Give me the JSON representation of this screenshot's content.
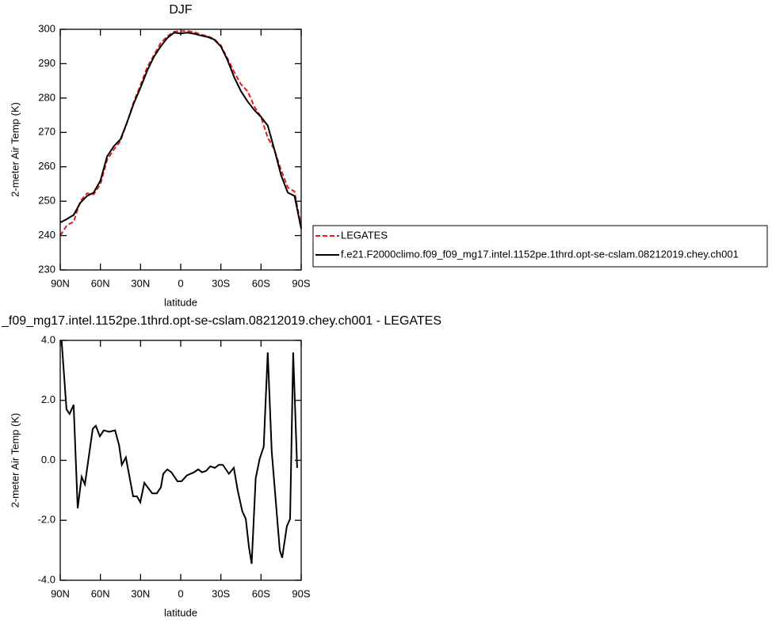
{
  "chart_data": [
    {
      "type": "line",
      "title": "DJF",
      "xlabel": "latitude",
      "ylabel": "2-meter Air Temp (K)",
      "x": [
        90,
        85,
        80,
        75,
        70,
        65,
        60,
        55,
        50,
        45,
        40,
        35,
        30,
        25,
        20,
        15,
        10,
        5,
        0,
        -5,
        -10,
        -15,
        -20,
        -25,
        -30,
        -35,
        -40,
        -45,
        -50,
        -55,
        -60,
        -65,
        -70,
        -75,
        -80,
        -85,
        -90
      ],
      "series": [
        {
          "name": "LEGATES",
          "color": "#e41a1c",
          "linestyle": "dashed",
          "values": [
            240,
            243,
            244,
            250,
            252.3,
            252,
            255,
            262,
            265,
            267.5,
            273,
            279,
            283.8,
            289,
            292.5,
            296,
            298,
            299.3,
            299.5,
            299.5,
            299.2,
            298.5,
            298,
            297.2,
            295.3,
            291.5,
            287.5,
            284,
            282,
            277.5,
            274.5,
            268.5,
            265,
            259,
            254,
            252.8,
            242.5
          ]
        },
        {
          "name": "f.e21.F2000climo.f09_f09_mg17.intel.1152pe.1thrd.opt-se-cslam.08212019.chey.ch001",
          "color": "#000000",
          "linestyle": "solid",
          "values": [
            243.8,
            244.8,
            246,
            249.5,
            251.5,
            252.5,
            256,
            263,
            266,
            268,
            273,
            278.5,
            283,
            288,
            292,
            295,
            297.5,
            299,
            298.8,
            299,
            298.7,
            298.2,
            297.8,
            297,
            295,
            291,
            286,
            282,
            279,
            276.5,
            274.5,
            272,
            265,
            257.5,
            252.5,
            251.5,
            242
          ]
        }
      ],
      "xlim": [
        90,
        -90
      ],
      "xticks": [
        {
          "value": 90,
          "label": "90N"
        },
        {
          "value": 60,
          "label": "60N"
        },
        {
          "value": 30,
          "label": "30N"
        },
        0,
        {
          "value": -30,
          "label": "30S"
        },
        {
          "value": -60,
          "label": "60S"
        },
        {
          "value": -90,
          "label": "90S"
        }
      ],
      "ylim": [
        230,
        300
      ],
      "yticks": [
        230,
        240,
        250,
        260,
        270,
        280,
        290,
        300
      ],
      "legend": "outside right"
    },
    {
      "type": "line",
      "title": "_f09_mg17.intel.1152pe.1thrd.opt-se-cslam.08212019.chey.ch001 - LEGATES",
      "xlabel": "latitude",
      "ylabel": "2-meter Air Temp (K)",
      "x": [
        89,
        85.3,
        83,
        80,
        77,
        74,
        71.6,
        65.7,
        63.4,
        60.4,
        57.5,
        53.4,
        49,
        46,
        44,
        41,
        35.5,
        32.7,
        30.2,
        27.2,
        21.3,
        17.8,
        14.8,
        13,
        10,
        7,
        2.4,
        -0.6,
        -4.7,
        -10,
        -13,
        -16,
        -19,
        -22,
        -25.5,
        -28.5,
        -31.5,
        -36,
        -39.7,
        -42.6,
        -46,
        -48.6,
        -51,
        -53,
        -56,
        -59,
        -62,
        -65,
        -68,
        -74,
        -75.8,
        -79.3,
        -81.7,
        -84,
        -87
      ],
      "series": [
        {
          "color": "#000000",
          "linestyle": "solid",
          "values": [
            4.0,
            1.7,
            1.55,
            1.85,
            -1.6,
            -0.55,
            -0.8,
            1.05,
            1.15,
            0.8,
            1.0,
            0.95,
            1.0,
            0.5,
            -0.15,
            0.1,
            -1.2,
            -1.2,
            -1.4,
            -0.75,
            -1.1,
            -1.1,
            -0.9,
            -0.45,
            -0.3,
            -0.4,
            -0.7,
            -0.7,
            -0.5,
            -0.4,
            -0.3,
            -0.4,
            -0.35,
            -0.2,
            -0.25,
            -0.15,
            -0.15,
            -0.45,
            -0.25,
            -1.0,
            -1.7,
            -1.95,
            -2.9,
            -3.45,
            -0.6,
            0.05,
            0.45,
            3.6,
            0.3,
            -3.0,
            -3.25,
            -2.2,
            -1.95,
            3.6,
            -0.25
          ]
        }
      ],
      "xlim": [
        90,
        -90
      ],
      "xticks": [
        {
          "value": 90,
          "label": "90N"
        },
        {
          "value": 60,
          "label": "60N"
        },
        {
          "value": 30,
          "label": "30N"
        },
        0,
        {
          "value": -30,
          "label": "30S"
        },
        {
          "value": -60,
          "label": "60S"
        },
        {
          "value": -90,
          "label": "90S"
        }
      ],
      "ylim": [
        -4,
        4
      ],
      "yticks": [
        {
          "value": -4,
          "label": "-4.0"
        },
        {
          "value": -2,
          "label": "-2.0"
        },
        {
          "value": 0,
          "label": "0.0"
        },
        {
          "value": 2,
          "label": "2.0"
        },
        {
          "value": 4,
          "label": "4.0"
        }
      ]
    }
  ]
}
